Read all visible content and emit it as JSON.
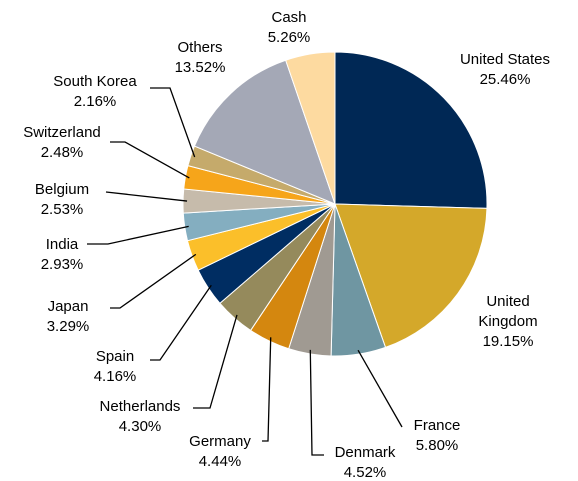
{
  "chart_data": {
    "type": "pie",
    "categories": [
      "United States",
      "United Kingdom",
      "France",
      "Denmark",
      "Germany",
      "Netherlands",
      "Spain",
      "Japan",
      "India",
      "Belgium",
      "Switzerland",
      "South Korea",
      "Others",
      "Cash"
    ],
    "values": [
      25.46,
      19.15,
      5.8,
      4.52,
      4.44,
      4.3,
      4.16,
      3.29,
      2.93,
      2.53,
      2.48,
      2.16,
      13.52,
      5.26
    ],
    "value_labels": [
      "25.46%",
      "19.15%",
      "5.80%",
      "4.52%",
      "4.44%",
      "4.30%",
      "4.16%",
      "3.29%",
      "2.93%",
      "2.53%",
      "2.48%",
      "2.16%",
      "13.52%",
      "5.26%"
    ],
    "colors": [
      "#002855",
      "#d4a82a",
      "#6f96a2",
      "#a09a92",
      "#d4870f",
      "#958a5c",
      "#002d62",
      "#fbbf2a",
      "#84aec0",
      "#c6bbab",
      "#f6a51a",
      "#c5aa6b",
      "#a4a8b6",
      "#fddaa0"
    ]
  }
}
